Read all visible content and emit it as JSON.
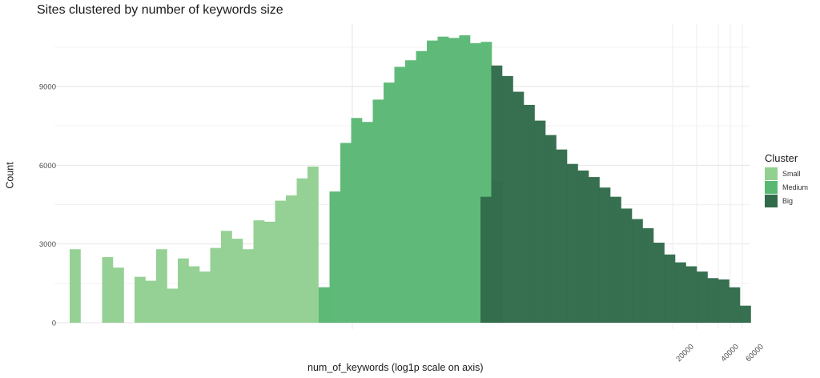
{
  "chart_data": {
    "type": "bar",
    "title": "Sites clustered by number of keywords size",
    "xlabel": "num_of_keywords (log1p scale on axis)",
    "ylabel": "Count",
    "ylim": [
      0,
      11000
    ],
    "y_ticks": [
      0,
      3000,
      6000,
      9000
    ],
    "x_tick_labels": [
      "20000",
      "40000",
      "60000"
    ],
    "grid": true,
    "legend": {
      "title": "Cluster",
      "position": "right"
    },
    "colors": {
      "Small": "#92d091",
      "Medium": "#5ab875",
      "Big": "#316b4a"
    },
    "series": [
      {
        "name": "Small",
        "values": [
          2800,
          0,
          0,
          2500,
          2100,
          0,
          1750,
          1600,
          2800,
          1300,
          2450,
          2150,
          1950,
          2850,
          3500,
          3200,
          2800,
          3900,
          3850,
          4650,
          4850,
          5500,
          5950,
          1350
        ]
      },
      {
        "name": "Medium",
        "values": [
          1350,
          5000,
          6850,
          7800,
          7650,
          8500,
          9150,
          9750,
          10000,
          10350,
          10750,
          10900,
          10850,
          10950,
          10650,
          10700,
          5400
        ]
      },
      {
        "name": "Big",
        "values": [
          4800,
          9800,
          9400,
          8800,
          8300,
          7700,
          7150,
          6600,
          6050,
          5800,
          5550,
          5150,
          4800,
          4350,
          3950,
          3600,
          3050,
          2600,
          2300,
          2150,
          1950,
          1700,
          1650,
          1350,
          650
        ]
      }
    ]
  }
}
